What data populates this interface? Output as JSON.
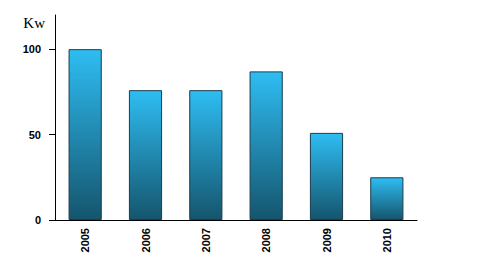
{
  "chart_data": {
    "type": "bar",
    "y_label": "Kw",
    "categories": [
      "2005",
      "2006",
      "2007",
      "2008",
      "2009",
      "2010"
    ],
    "values": [
      100,
      76,
      76,
      87,
      51,
      25
    ],
    "color": "#2ebdf2",
    "ylim": [
      0,
      120
    ],
    "yticks": [
      0,
      50,
      100
    ],
    "grid": false
  }
}
